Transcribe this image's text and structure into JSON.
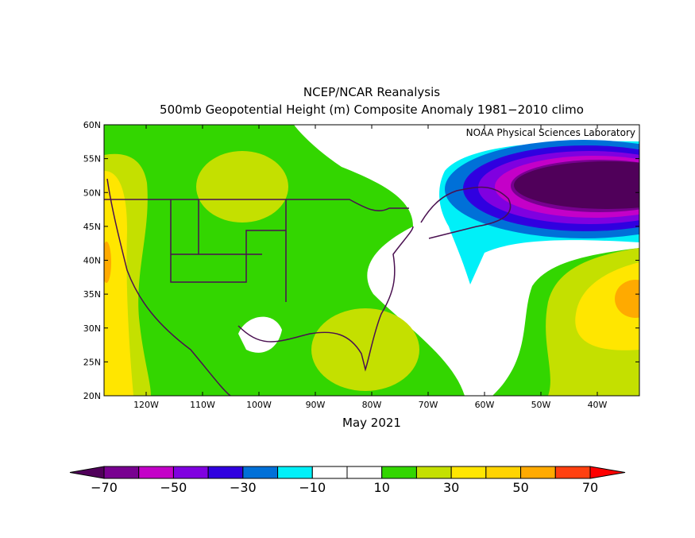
{
  "title": "NCEP/NCAR Reanalysis",
  "subtitle": "500mb Geopotential Height (m) Composite Anomaly 1981−2010 climo",
  "credit": "NOAA Physical Sciences Laboratory",
  "period": "May 2021",
  "lat_labels": [
    "60N",
    "55N",
    "50N",
    "45N",
    "40N",
    "35N",
    "30N",
    "25N",
    "20N"
  ],
  "lon_labels": [
    "120W",
    "110W",
    "100W",
    "90W",
    "80W",
    "70W",
    "60W",
    "50W",
    "40W"
  ],
  "colorbar": {
    "labels": [
      "−70",
      "−50",
      "−30",
      "−10",
      "10",
      "30",
      "50",
      "70"
    ],
    "colors": [
      "#50005a",
      "#780090",
      "#c400c8",
      "#8000e0",
      "#3000e0",
      "#0070d8",
      "#00f0f8",
      "#ffffff",
      "#ffffff",
      "#33d600",
      "#c4e000",
      "#ffe600",
      "#ffd400",
      "#ffaa00",
      "#ff4010",
      "#ff0000"
    ]
  }
}
